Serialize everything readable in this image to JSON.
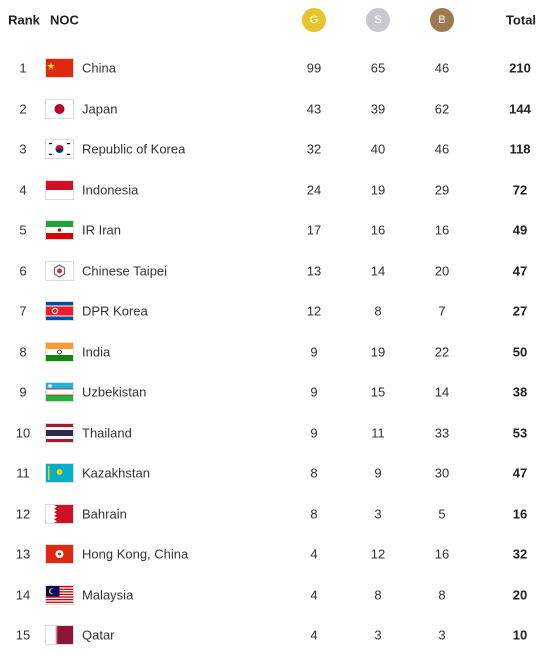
{
  "header": {
    "rank": "Rank",
    "noc": "NOC",
    "gold": "G",
    "silver": "S",
    "bronze": "B",
    "total": "Total"
  },
  "rows": [
    {
      "rank": 1,
      "noc": "China",
      "gold": 99,
      "silver": 65,
      "bronze": 46,
      "total": 210
    },
    {
      "rank": 2,
      "noc": "Japan",
      "gold": 43,
      "silver": 39,
      "bronze": 62,
      "total": 144
    },
    {
      "rank": 3,
      "noc": "Republic of Korea",
      "gold": 32,
      "silver": 40,
      "bronze": 46,
      "total": 118
    },
    {
      "rank": 4,
      "noc": "Indonesia",
      "gold": 24,
      "silver": 19,
      "bronze": 29,
      "total": 72
    },
    {
      "rank": 5,
      "noc": "IR Iran",
      "gold": 17,
      "silver": 16,
      "bronze": 16,
      "total": 49
    },
    {
      "rank": 6,
      "noc": "Chinese Taipei",
      "gold": 13,
      "silver": 14,
      "bronze": 20,
      "total": 47
    },
    {
      "rank": 7,
      "noc": "DPR Korea",
      "gold": 12,
      "silver": 8,
      "bronze": 7,
      "total": 27
    },
    {
      "rank": 8,
      "noc": "India",
      "gold": 9,
      "silver": 19,
      "bronze": 22,
      "total": 50
    },
    {
      "rank": 9,
      "noc": "Uzbekistan",
      "gold": 9,
      "silver": 15,
      "bronze": 14,
      "total": 38
    },
    {
      "rank": 10,
      "noc": "Thailand",
      "gold": 9,
      "silver": 11,
      "bronze": 33,
      "total": 53
    },
    {
      "rank": 11,
      "noc": "Kazakhstan",
      "gold": 8,
      "silver": 9,
      "bronze": 30,
      "total": 47
    },
    {
      "rank": 12,
      "noc": "Bahrain",
      "gold": 8,
      "silver": 3,
      "bronze": 5,
      "total": 16
    },
    {
      "rank": 13,
      "noc": "Hong Kong, China",
      "gold": 4,
      "silver": 12,
      "bronze": 16,
      "total": 32
    },
    {
      "rank": 14,
      "noc": "Malaysia",
      "gold": 4,
      "silver": 8,
      "bronze": 8,
      "total": 20
    },
    {
      "rank": 15,
      "noc": "Qatar",
      "gold": 4,
      "silver": 3,
      "bronze": 3,
      "total": 10
    }
  ]
}
